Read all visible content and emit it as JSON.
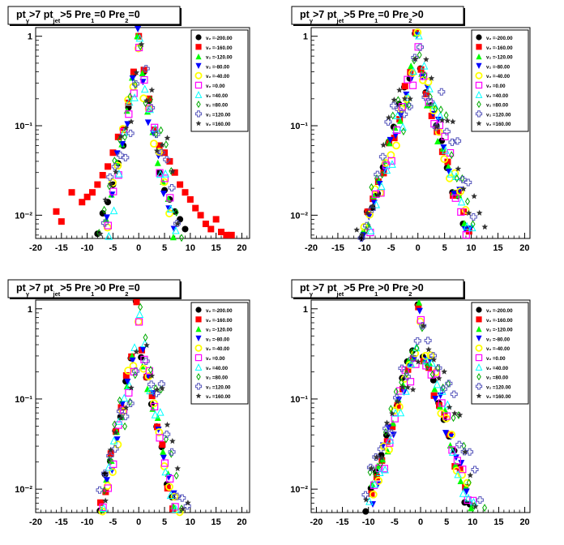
{
  "legend_labels": [
    "v₂ =-200.00",
    "v₂ =-160.00",
    "v₂ =-120.00",
    "v₂ =-80.00",
    "v₂ =-40.00",
    "v₂ =0.00",
    "v₂ =40.00",
    "v₂ =80.00",
    "v₂ =120.00",
    "v₂ =160.00"
  ],
  "marker_styles": [
    {
      "marker": "filled-circle",
      "color": "#000000"
    },
    {
      "marker": "filled-square",
      "color": "#ff0000"
    },
    {
      "marker": "filled-triangle-up",
      "color": "#00ff00"
    },
    {
      "marker": "filled-triangle-down",
      "color": "#0000ff"
    },
    {
      "marker": "open-circle",
      "color": "#ffff00"
    },
    {
      "marker": "open-square",
      "color": "#ff00ff"
    },
    {
      "marker": "open-triangle-up",
      "color": "#00ffff"
    },
    {
      "marker": "open-diamond",
      "color": "#00aa00"
    },
    {
      "marker": "open-cross",
      "color": "#5555bb"
    },
    {
      "marker": "star",
      "color": "#333333"
    }
  ],
  "chart_data": [
    {
      "type": "scatter",
      "title": {
        "p1": "pt",
        "s1": "γ",
        "p2": ">7  pt",
        "s2": "jet",
        "p3": ">5  Pre",
        "s3": "1",
        "p4": "=0  Pre",
        "s4": "2",
        "p5": "=0"
      },
      "y_scale": "log",
      "ylim": [
        0.0055,
        1.25
      ],
      "xlim": [
        -20,
        21.5
      ],
      "x_ticks": [
        -20,
        -15,
        -10,
        -5,
        0,
        5,
        10,
        15,
        20
      ],
      "x_tick_labels": [
        "-20",
        "-15",
        "-10",
        "-5",
        "0",
        "5",
        "10",
        "15",
        "20"
      ],
      "y_ticks": [
        0.01,
        0.1,
        1
      ],
      "y_tick_labels": [
        "10⁻²",
        "10⁻¹",
        "1"
      ],
      "shape": {
        "peak": 1.0,
        "slope_left": 0.3,
        "slope_right": 0.28,
        "xmin": -17,
        "xmax": 20
      },
      "series": [
        {
          "name": "v₂ =-200.00",
          "x": [
            -8,
            -7,
            -6,
            -5,
            -4,
            -3,
            -2,
            -1,
            0,
            1,
            2,
            3,
            4,
            5,
            6,
            7,
            8,
            9
          ],
          "y": [
            0.0062,
            0.0105,
            0.014,
            0.022,
            0.038,
            0.06,
            0.16,
            0.38,
            1.0,
            0.4,
            0.19,
            0.09,
            0.03,
            0.019,
            0.015,
            0.011,
            0.009,
            0.007
          ]
        },
        {
          "name": "v₂ =-160.00",
          "x": [
            -16,
            -15,
            -13,
            -11,
            -10,
            -9,
            -8,
            -7,
            -6,
            -5,
            -4,
            -3,
            -2,
            -1,
            0,
            1,
            2,
            3,
            4,
            5,
            6,
            7,
            8,
            9,
            10,
            11,
            12,
            13,
            14,
            15,
            16,
            17,
            18
          ],
          "y": [
            0.011,
            0.0085,
            0.018,
            0.014,
            0.016,
            0.018,
            0.022,
            0.028,
            0.035,
            0.05,
            0.075,
            0.09,
            0.18,
            0.4,
            1.0,
            0.42,
            0.2,
            0.09,
            0.06,
            0.05,
            0.04,
            0.03,
            0.022,
            0.018,
            0.015,
            0.012,
            0.01,
            0.008,
            0.007,
            0.009,
            0.0065,
            0.006,
            0.006
          ]
        }
      ]
    },
    {
      "type": "scatter",
      "title": {
        "p1": "pt",
        "s1": "γ",
        "p2": ">7  pt",
        "s2": "jet",
        "p3": ">5  Pre",
        "s3": "1",
        "p4": "=0  Pre",
        "s4": "2",
        "p5": ">0"
      },
      "y_scale": "log",
      "ylim": [
        0.0055,
        1.25
      ],
      "xlim": [
        -20,
        21
      ],
      "x_ticks": [
        -20,
        -15,
        -10,
        -5,
        0,
        5,
        10,
        15,
        20
      ],
      "x_tick_labels": [
        "-20",
        "-15",
        "-10",
        "-5",
        "0",
        "5",
        "10",
        "15",
        "20"
      ],
      "y_ticks": [
        0.01,
        0.1,
        1
      ],
      "y_tick_labels": [
        "10⁻²",
        "10⁻¹",
        "1"
      ],
      "shape": {
        "peak": 1.0,
        "slope_left": 0.2,
        "slope_right": 0.2,
        "xmin": -20,
        "xmax": 21
      }
    },
    {
      "type": "scatter",
      "title": {
        "p1": "pt",
        "s1": "γ",
        "p2": ">7  pt",
        "s2": "jet",
        "p3": ">5  Pre",
        "s3": "1",
        "p4": ">0  Pre",
        "s4": "2",
        "p5": "=0"
      },
      "y_scale": "log",
      "ylim": [
        0.0055,
        1.25
      ],
      "xlim": [
        -20,
        21.5
      ],
      "x_ticks": [
        -20,
        -15,
        -10,
        -5,
        0,
        5,
        10,
        15,
        20
      ],
      "x_tick_labels": [
        "-20",
        "-15",
        "-10",
        "-5",
        "0",
        "5",
        "10",
        "15",
        "20"
      ],
      "y_ticks": [
        0.01,
        0.1,
        1
      ],
      "y_tick_labels": [
        "10⁻²",
        "10⁻¹",
        "1"
      ],
      "shape": {
        "peak": 1.0,
        "slope_left": 0.28,
        "slope_right": 0.27,
        "xmin": -18,
        "xmax": 21
      }
    },
    {
      "type": "scatter",
      "title": {
        "p1": "pt",
        "s1": "γ",
        "p2": ">7  pt",
        "s2": "jet",
        "p3": ">5  Pre",
        "s3": "1",
        "p4": ">0  Pre",
        "s4": "2",
        "p5": ">0"
      },
      "y_scale": "log",
      "ylim": [
        0.0055,
        1.25
      ],
      "xlim": [
        -21,
        21
      ],
      "x_ticks": [
        -20,
        -15,
        -10,
        -5,
        0,
        5,
        10,
        15,
        20
      ],
      "x_tick_labels": [
        "-20",
        "-15",
        "-10",
        "-5",
        "0",
        "5",
        "10",
        "15",
        "20"
      ],
      "y_ticks": [
        0.01,
        0.1,
        1
      ],
      "y_tick_labels": [
        "10⁻²",
        "10⁻¹",
        "1"
      ],
      "shape": {
        "peak": 1.0,
        "slope_left": 0.2,
        "slope_right": 0.2,
        "xmin": -20,
        "xmax": 21
      }
    }
  ]
}
